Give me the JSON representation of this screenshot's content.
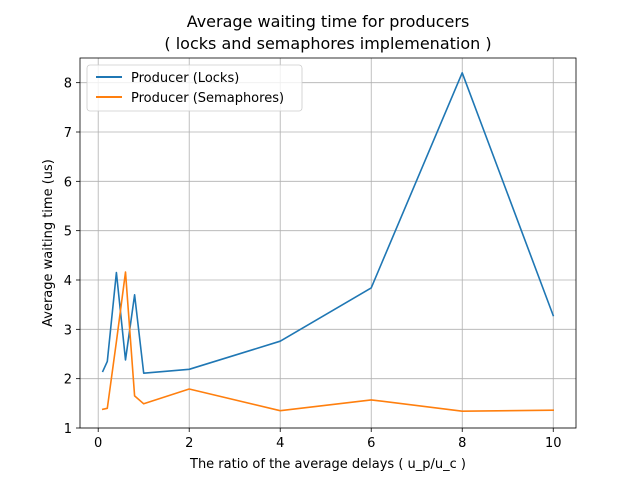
{
  "chart_data": {
    "type": "line",
    "title_line1": "Average waiting time for producers",
    "title_line2": "( locks and semaphores implemenation )",
    "xlabel": "The ratio of the average delays ( u_p/u_c )",
    "ylabel": "Average waiting time (us)",
    "xlim": [
      -0.4,
      10.5
    ],
    "ylim": [
      1,
      8.5
    ],
    "xticks": [
      0,
      2,
      4,
      6,
      8,
      10
    ],
    "yticks": [
      1,
      2,
      3,
      4,
      5,
      6,
      7,
      8
    ],
    "grid": true,
    "legend_position": "upper-left",
    "series": [
      {
        "name": "Producer (Locks)",
        "color": "#1f77b4",
        "x": [
          0.1,
          0.2,
          0.4,
          0.6,
          0.8,
          1,
          2,
          4,
          6,
          8,
          10
        ],
        "y": [
          2.15,
          2.35,
          4.15,
          2.38,
          3.7,
          2.11,
          2.19,
          2.76,
          3.84,
          8.2,
          3.28
        ]
      },
      {
        "name": "Producer (Semaphores)",
        "color": "#ff7f0e",
        "x": [
          0.1,
          0.2,
          0.4,
          0.6,
          0.8,
          1,
          2,
          4,
          6,
          8,
          10
        ],
        "y": [
          1.38,
          1.4,
          2.75,
          4.16,
          1.65,
          1.49,
          1.79,
          1.35,
          1.57,
          1.34,
          1.36
        ]
      }
    ]
  }
}
